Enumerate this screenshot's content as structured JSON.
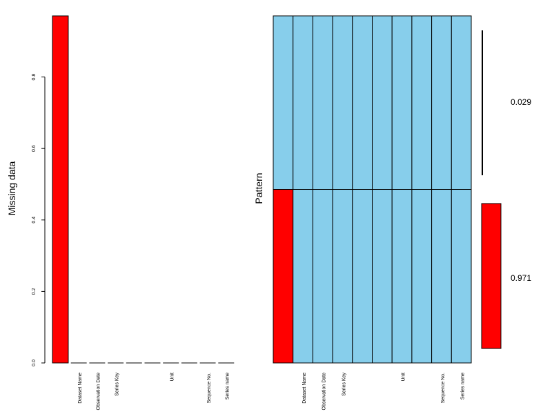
{
  "chart_data": [
    {
      "type": "bar",
      "ylabel": "Missing data",
      "ylim": [
        0,
        0.971
      ],
      "yticks": [
        "0.0",
        "0.2",
        "0.4",
        "0.6",
        "0.8"
      ],
      "yticks_values": [
        0,
        0.2,
        0.4,
        0.6,
        0.8
      ],
      "categories": [
        "",
        "Dataset Name",
        "Observation Date",
        "Series Key",
        "",
        "",
        "Unit",
        "",
        "Sequence No.",
        "Series name"
      ],
      "values": [
        0.971,
        0,
        0,
        0,
        0,
        0,
        0,
        0,
        0,
        0
      ],
      "colors": {
        "missing": "#ff0000",
        "axis": "#000000"
      }
    },
    {
      "type": "heatmap",
      "ylabel": "Pattern",
      "columns": [
        "",
        "Dataset Name",
        "Observation Date",
        "Series Key",
        "",
        "",
        "Unit",
        "",
        "Sequence No.",
        "Series name"
      ],
      "patterns": [
        {
          "proportion": 0.029,
          "label": "0.029",
          "missing": [
            false,
            false,
            false,
            false,
            false,
            false,
            false,
            false,
            false,
            false
          ]
        },
        {
          "proportion": 0.971,
          "label": "0.971",
          "missing": [
            true,
            false,
            false,
            false,
            false,
            false,
            false,
            false,
            false,
            false
          ]
        }
      ],
      "colors": {
        "present": "#87ceeb",
        "missing": "#ff0000",
        "line": "#000000"
      }
    }
  ]
}
